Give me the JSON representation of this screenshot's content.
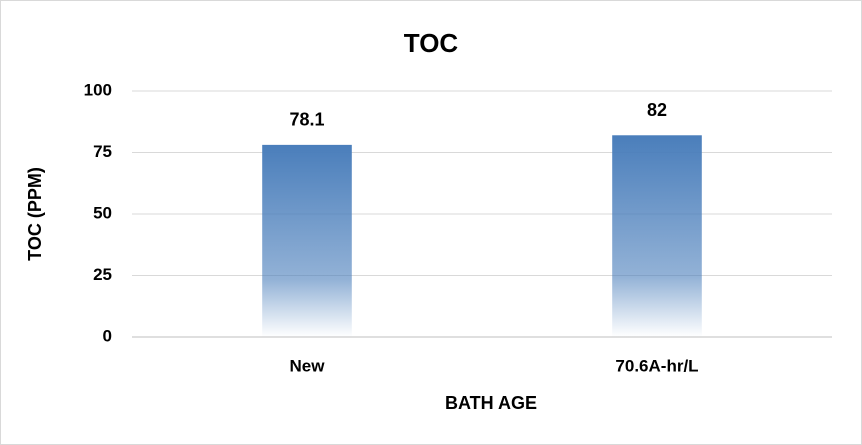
{
  "chart_data": {
    "type": "bar",
    "title": "TOC",
    "x_label": "BATH AGE",
    "y_label": "TOC (PPM)",
    "categories": [
      "New",
      "70.6A-hr/L"
    ],
    "values": [
      78.1,
      82
    ],
    "color": "#4a7ebb",
    "ylim": [
      0,
      100
    ],
    "yticks": [
      0,
      25,
      50,
      75,
      100
    ],
    "grid": true
  }
}
